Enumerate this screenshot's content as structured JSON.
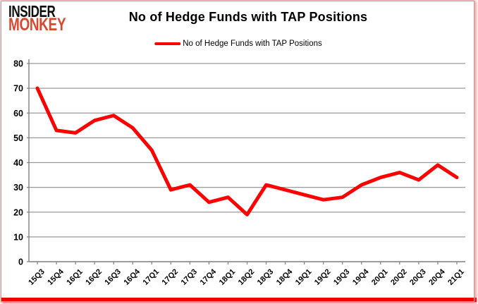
{
  "logo": {
    "line1": "INSIDER",
    "line2": "MONKEY"
  },
  "header": {
    "title": "No of Hedge Funds with TAP Positions"
  },
  "legend": {
    "label": "No of Hedge Funds with TAP Positions"
  },
  "colors": {
    "line": "#fe0000",
    "grid": "#9a9a9a",
    "axis": "#7f7f7f",
    "text": "#000000",
    "logo_black": "#0d0d0d",
    "logo_red": "#d9472e",
    "bottom_bar": "#f10000"
  },
  "chart_data": {
    "type": "line",
    "title": "No of Hedge Funds with TAP Positions",
    "xlabel": "",
    "ylabel": "",
    "categories": [
      "15Q3",
      "15Q4",
      "16Q1",
      "16Q2",
      "16Q3",
      "16Q4",
      "17Q1",
      "17Q2",
      "17Q3",
      "17Q4",
      "18Q1",
      "18Q2",
      "18Q3",
      "18Q4",
      "19Q1",
      "19Q2",
      "19Q3",
      "19Q4",
      "20Q1",
      "20Q2",
      "20Q3",
      "20Q4",
      "21Q1"
    ],
    "series": [
      {
        "name": "No of Hedge Funds with TAP Positions",
        "values": [
          70,
          53,
          52,
          57,
          59,
          54,
          45,
          29,
          31,
          24,
          26,
          19,
          31,
          29,
          27,
          25,
          26,
          31,
          34,
          36,
          33,
          39,
          34
        ]
      }
    ],
    "ylim": [
      0,
      80
    ],
    "ytick_step": 10,
    "grid": "horizontal",
    "legend_position": "top"
  }
}
